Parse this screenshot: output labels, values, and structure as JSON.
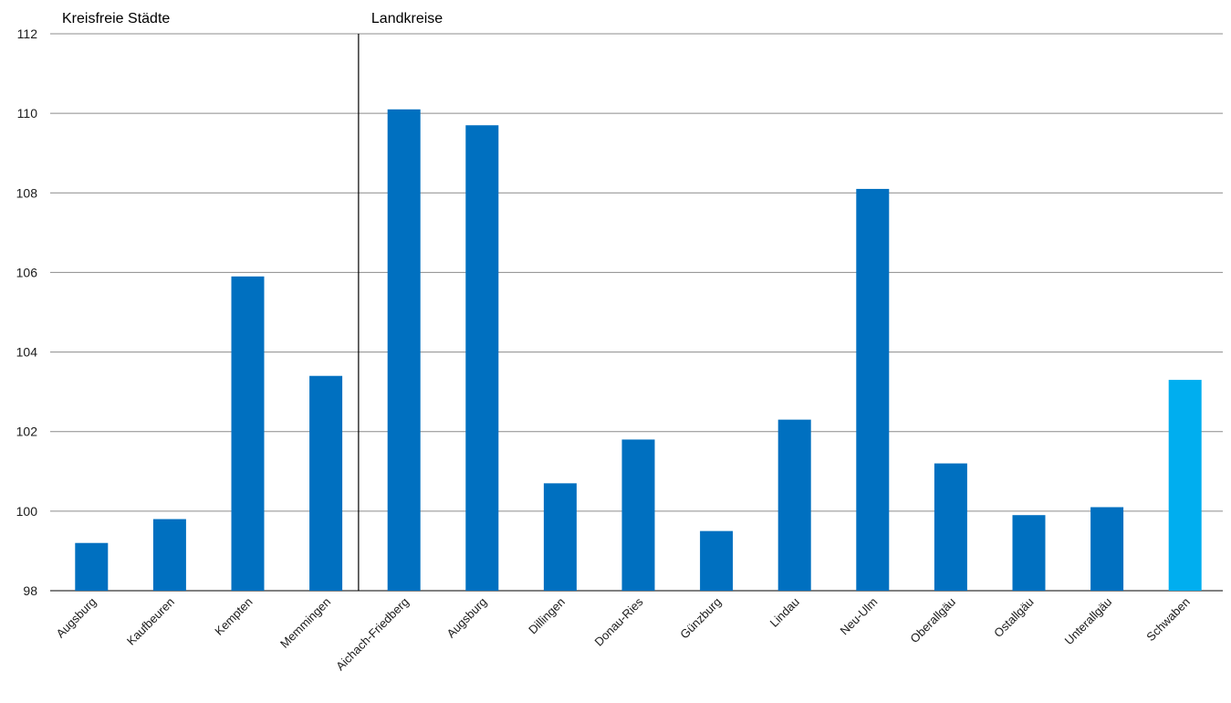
{
  "chart_data": {
    "type": "bar",
    "title": "",
    "xlabel": "",
    "ylabel": "",
    "ylim": [
      98,
      112
    ],
    "yticks": [
      98,
      100,
      102,
      104,
      106,
      108,
      110,
      112
    ],
    "grid": true,
    "groups": [
      {
        "label": "Kreisfreie Städte",
        "start_index": 0,
        "count": 4
      },
      {
        "label": "Landkreise",
        "start_index": 4,
        "count": 11
      }
    ],
    "categories": [
      "Augsburg",
      "Kaufbeuren",
      "Kempten",
      "Memmingen",
      "Aichach-Friedberg",
      "Augsburg",
      "Dillingen",
      "Donau-Ries",
      "Günzburg",
      "Lindau",
      "Neu-Ulm",
      "Oberallgäu",
      "Ostallgäu",
      "Unterallgäu",
      "Schwaben"
    ],
    "values": [
      99.2,
      99.8,
      105.9,
      103.4,
      110.1,
      109.7,
      100.7,
      101.8,
      99.5,
      102.3,
      108.1,
      101.2,
      99.9,
      100.1,
      103.3
    ],
    "bar_colors": [
      "#0070c0",
      "#0070c0",
      "#0070c0",
      "#0070c0",
      "#0070c0",
      "#0070c0",
      "#0070c0",
      "#0070c0",
      "#0070c0",
      "#0070c0",
      "#0070c0",
      "#0070c0",
      "#0070c0",
      "#0070c0",
      "#00aeef"
    ],
    "colors": {
      "bar": "#0070c0",
      "highlight": "#00aeef",
      "grid": "#8c8c8c",
      "separator": "#000000"
    }
  }
}
